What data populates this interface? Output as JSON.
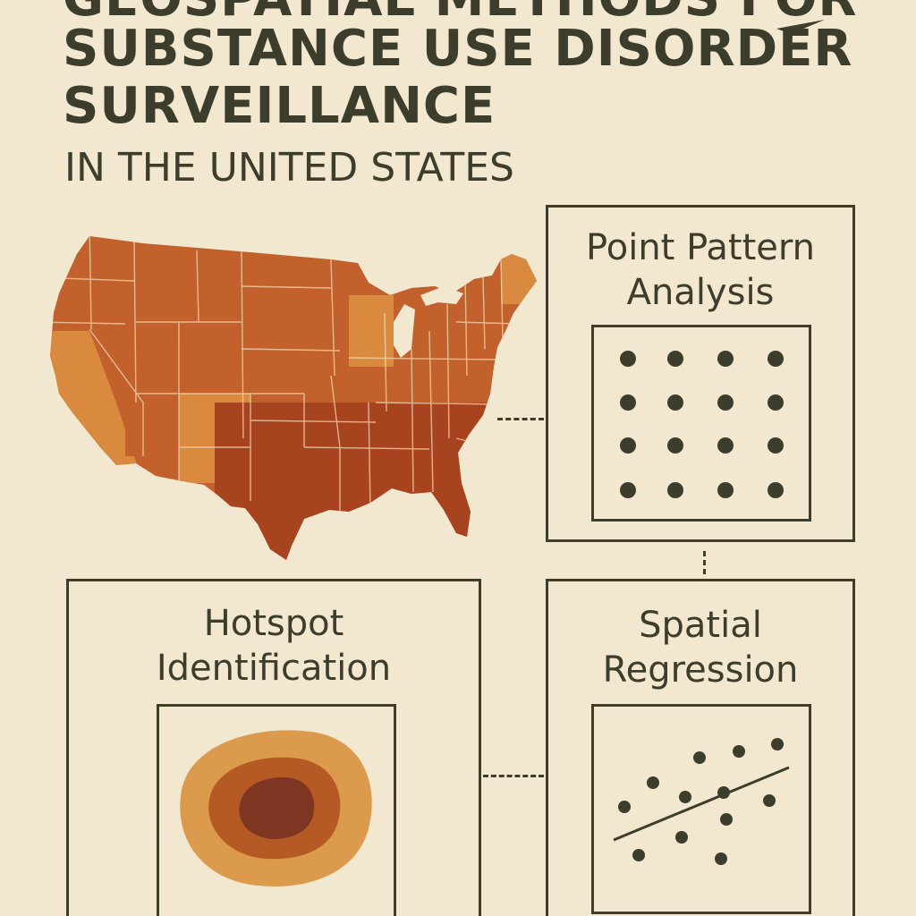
{
  "title": {
    "line1": "GEOSPATIAL METHODS FOR",
    "line2": "SUBSTANCE USE DISORDER",
    "line3": "SURVEILLANCE",
    "subtitle": "IN THE UNITED STATES"
  },
  "panels": {
    "point_pattern": {
      "line1": "Point Pattern",
      "line2": "Analysis"
    },
    "hotspot": {
      "line1": "Hotspot",
      "line2": "Identification"
    },
    "regression": {
      "line1": "Spatial",
      "line2": "Regression"
    }
  },
  "colors": {
    "background": "#f2e8cf",
    "ink": "#3d3d2c",
    "map_dark": "#a8431f",
    "map_mid": "#c2612b",
    "map_light": "#d98a3e",
    "hotspot_outer": "#dc9a4c",
    "hotspot_mid": "#b65a25",
    "hotspot_core": "#7e3522"
  }
}
